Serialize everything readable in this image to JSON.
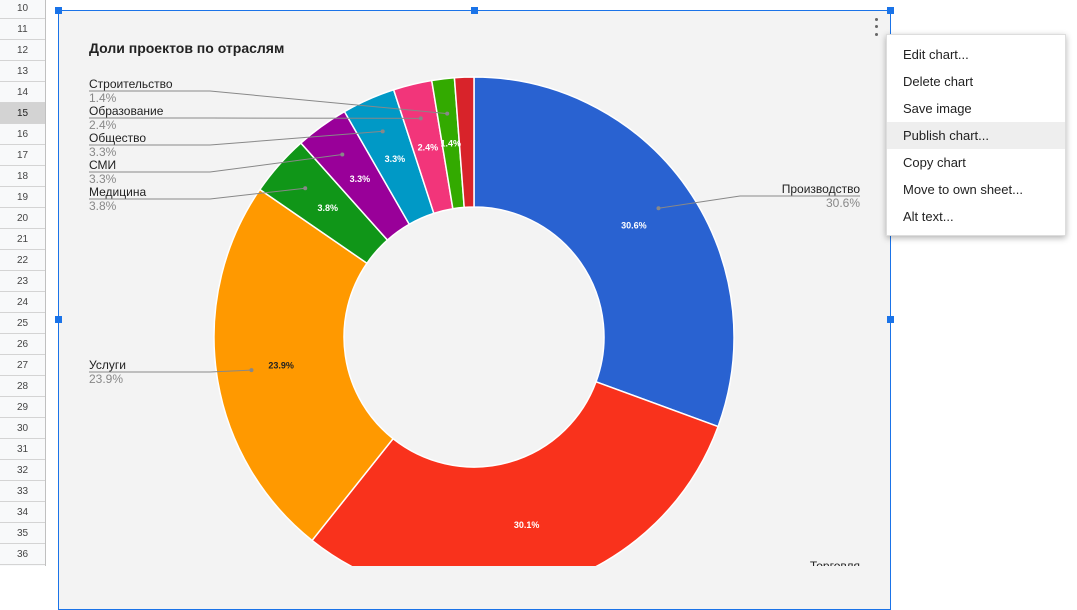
{
  "spreadsheet": {
    "rows": [
      "10",
      "11",
      "12",
      "13",
      "14",
      "15",
      "16",
      "17",
      "18",
      "19",
      "20",
      "21",
      "22",
      "23",
      "24",
      "25",
      "26",
      "27",
      "28",
      "29",
      "30",
      "31",
      "32",
      "33",
      "34",
      "35",
      "36"
    ],
    "selected_row": "15"
  },
  "chart": {
    "title": "Доли проектов по отраслям"
  },
  "chart_data": {
    "type": "pie",
    "donut": true,
    "title": "Доли проектов по отраслям",
    "legend": "labeled",
    "slices": [
      {
        "name": "Производство",
        "value": 30.6,
        "label": "30.6%",
        "color": "#2962d1"
      },
      {
        "name": "Торговля",
        "value": 30.1,
        "label": "30.1%",
        "color": "#f9321c"
      },
      {
        "name": "Услуги",
        "value": 23.9,
        "label": "23.9%",
        "color": "#ff9900"
      },
      {
        "name": "Медицина",
        "value": 3.8,
        "label": "3.8%",
        "color": "#109618"
      },
      {
        "name": "СМИ",
        "value": 3.3,
        "label": "3.3%",
        "color": "#990099"
      },
      {
        "name": "Общество",
        "value": 3.3,
        "label": "3.3%",
        "color": "#0099c6"
      },
      {
        "name": "Образование",
        "value": 2.4,
        "label": "2.4%",
        "color": "#f2357a"
      },
      {
        "name": "Строительство",
        "value": 1.4,
        "label": "1.4%",
        "color": "#33aa00"
      },
      {
        "name": "",
        "value": 1.2,
        "label": "",
        "color": "#d8232a"
      }
    ]
  },
  "context_menu": {
    "items": [
      "Edit chart...",
      "Delete chart",
      "Save image",
      "Publish chart...",
      "Copy chart",
      "Move to own sheet...",
      "Alt text..."
    ],
    "highlighted": "Publish chart..."
  }
}
